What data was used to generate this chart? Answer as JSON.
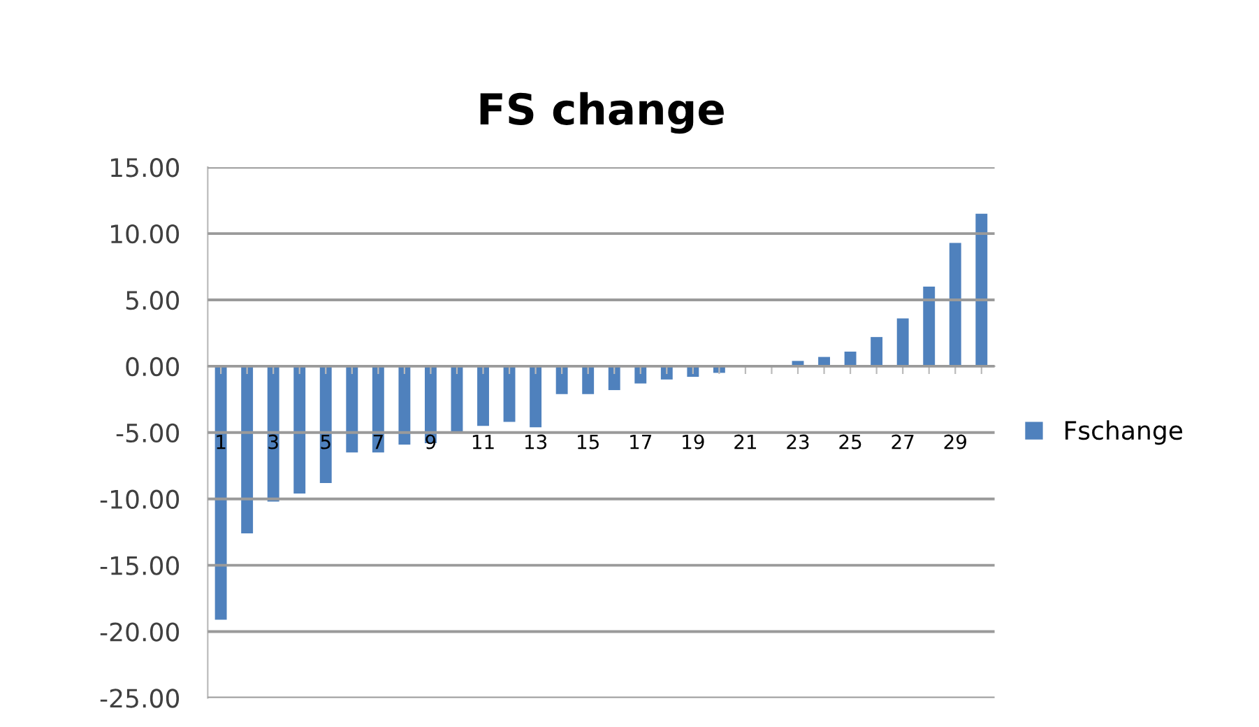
{
  "chart_data": {
    "type": "bar",
    "title": "FS change",
    "categories": [
      "1",
      null,
      "3",
      null,
      "5",
      null,
      "7",
      null,
      "9",
      null,
      "11",
      null,
      "13",
      null,
      "15",
      null,
      "17",
      null,
      "19",
      null,
      "21",
      null,
      "23",
      null,
      "25",
      null,
      "27",
      null,
      "29",
      null
    ],
    "series": [
      {
        "name": "Fschange",
        "color": "#4f81bd",
        "values": [
          -19.1,
          -12.6,
          -10.2,
          -9.6,
          -8.8,
          -6.5,
          -6.5,
          -5.9,
          -5.8,
          -5.0,
          -4.5,
          -4.2,
          -4.6,
          -2.1,
          -2.1,
          -1.8,
          -1.3,
          -1.0,
          -0.8,
          -0.5,
          0,
          0,
          0.4,
          0.7,
          1.1,
          2.2,
          3.6,
          6.0,
          9.3,
          11.5
        ]
      }
    ],
    "ylim": [
      -25,
      15
    ],
    "yticks": [
      {
        "value": -25,
        "label": "-25.00"
      },
      {
        "value": -20,
        "label": "-20.00"
      },
      {
        "value": -15,
        "label": "-15.00"
      },
      {
        "value": -10,
        "label": "-10.00"
      },
      {
        "value": -5,
        "label": "-5.00"
      },
      {
        "value": 0,
        "label": "0.00"
      },
      {
        "value": 5,
        "label": "5.00"
      },
      {
        "value": 10,
        "label": "10.00"
      },
      {
        "value": 15,
        "label": "15.00"
      }
    ],
    "grid": "y",
    "legend": "right"
  }
}
